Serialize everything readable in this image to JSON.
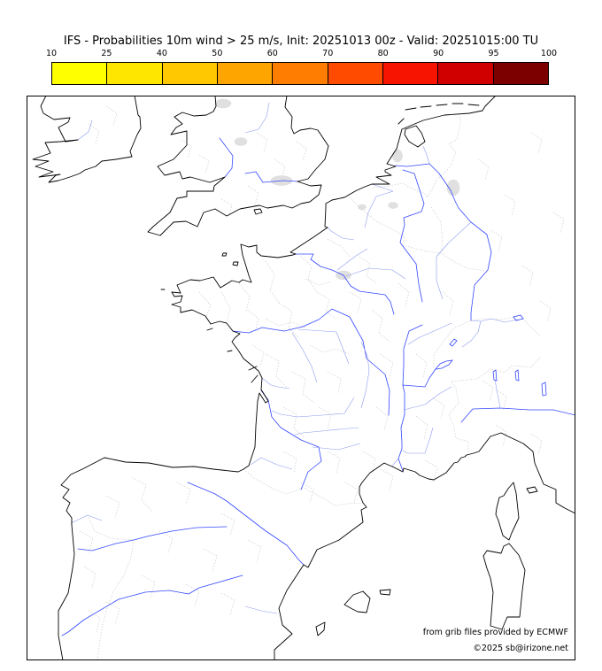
{
  "title": "IFS - Probabilities 10m wind > 25 m/s, Init: 20251013 00z - Valid: 20251015:00 TU",
  "colorbar": {
    "tick_labels": [
      "10",
      "25",
      "40",
      "50",
      "60",
      "70",
      "80",
      "90",
      "95",
      "100"
    ],
    "segment_colors": [
      "#ffff00",
      "#ffe600",
      "#ffc800",
      "#ffa500",
      "#ff7d00",
      "#ff4b00",
      "#f71400",
      "#d00000",
      "#7d0000"
    ],
    "border_color": "#000000"
  },
  "credits": {
    "line1": "from grib files provided by ECMWF",
    "line2": "©2025 sb@irizone.net"
  },
  "map_style": {
    "coast-color": "#000000",
    "river-color": "#3347ff",
    "stream-color": "#8c9bf0",
    "admin-color": "#c9c9c9",
    "urban-fill": "#e0e0e0",
    "frame-color": "#000000",
    "sea-color": "#ffffff"
  }
}
